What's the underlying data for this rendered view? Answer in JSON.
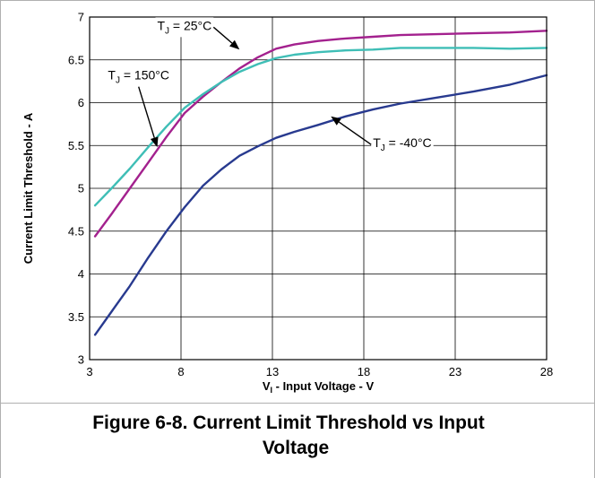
{
  "chart_data": {
    "type": "line",
    "xlabel_prefix": "V",
    "xlabel_sub": "I",
    "xlabel_rest": " - Input Voltage - V",
    "ylabel": "Current Limit Threshold - A",
    "xlim": [
      3,
      28
    ],
    "ylim": [
      3,
      7
    ],
    "xticks": [
      3,
      8,
      13,
      18,
      23,
      28
    ],
    "yticks": [
      3,
      3.5,
      4,
      4.5,
      5,
      5.5,
      6,
      6.5,
      7
    ],
    "grid": true,
    "series": [
      {
        "name": "25°C",
        "color": "#a3218e",
        "x": [
          3.3,
          4.2,
          5.2,
          6.2,
          7.2,
          8.2,
          9.2,
          10.2,
          11.2,
          12.2,
          13.2,
          14.2,
          15.5,
          17,
          18.5,
          20,
          22,
          24,
          26,
          28
        ],
        "y": [
          4.44,
          4.7,
          5.0,
          5.3,
          5.6,
          5.88,
          6.07,
          6.24,
          6.4,
          6.53,
          6.63,
          6.68,
          6.72,
          6.75,
          6.77,
          6.79,
          6.8,
          6.81,
          6.82,
          6.84
        ]
      },
      {
        "name": "150°C",
        "color": "#3fbeb6",
        "x": [
          3.3,
          4.2,
          5.2,
          6.2,
          7.2,
          8.2,
          9.2,
          10.2,
          11.2,
          12.2,
          13.2,
          14.2,
          15.5,
          17,
          18.5,
          20,
          22,
          24,
          26,
          28
        ],
        "y": [
          4.8,
          5.0,
          5.23,
          5.48,
          5.72,
          5.94,
          6.1,
          6.24,
          6.36,
          6.45,
          6.52,
          6.56,
          6.59,
          6.61,
          6.62,
          6.64,
          6.64,
          6.64,
          6.63,
          6.64
        ]
      },
      {
        "name": "-40°C",
        "color": "#283a8f",
        "x": [
          3.3,
          4.2,
          5.2,
          6.2,
          7.2,
          8.2,
          9.2,
          10.2,
          11.2,
          12.2,
          13.2,
          14.2,
          15.5,
          17,
          18.5,
          20,
          22,
          24,
          26,
          28
        ],
        "y": [
          3.29,
          3.56,
          3.86,
          4.19,
          4.5,
          4.78,
          5.03,
          5.22,
          5.38,
          5.49,
          5.59,
          5.66,
          5.74,
          5.84,
          5.92,
          5.99,
          6.06,
          6.13,
          6.21,
          6.32
        ]
      }
    ],
    "annotations": [
      {
        "series": "25°C",
        "prefix": "T",
        "sub": "J",
        "text": " = 25°C",
        "tx": 6.7,
        "ty": 6.85,
        "ax": 11.2,
        "ay": 6.62
      },
      {
        "series": "150°C",
        "prefix": "T",
        "sub": "J",
        "text": " = 150°C",
        "tx": 4.0,
        "ty": 6.27,
        "ax": 6.7,
        "ay": 5.48
      },
      {
        "series": "-40°C",
        "prefix": "T",
        "sub": "J",
        "text": " = -40°C",
        "tx": 18.5,
        "ty": 5.48,
        "ax": 16.2,
        "ay": 5.84
      }
    ]
  },
  "caption": {
    "line1": "Figure 6-8. Current Limit Threshold vs Input",
    "line2": "Voltage"
  }
}
